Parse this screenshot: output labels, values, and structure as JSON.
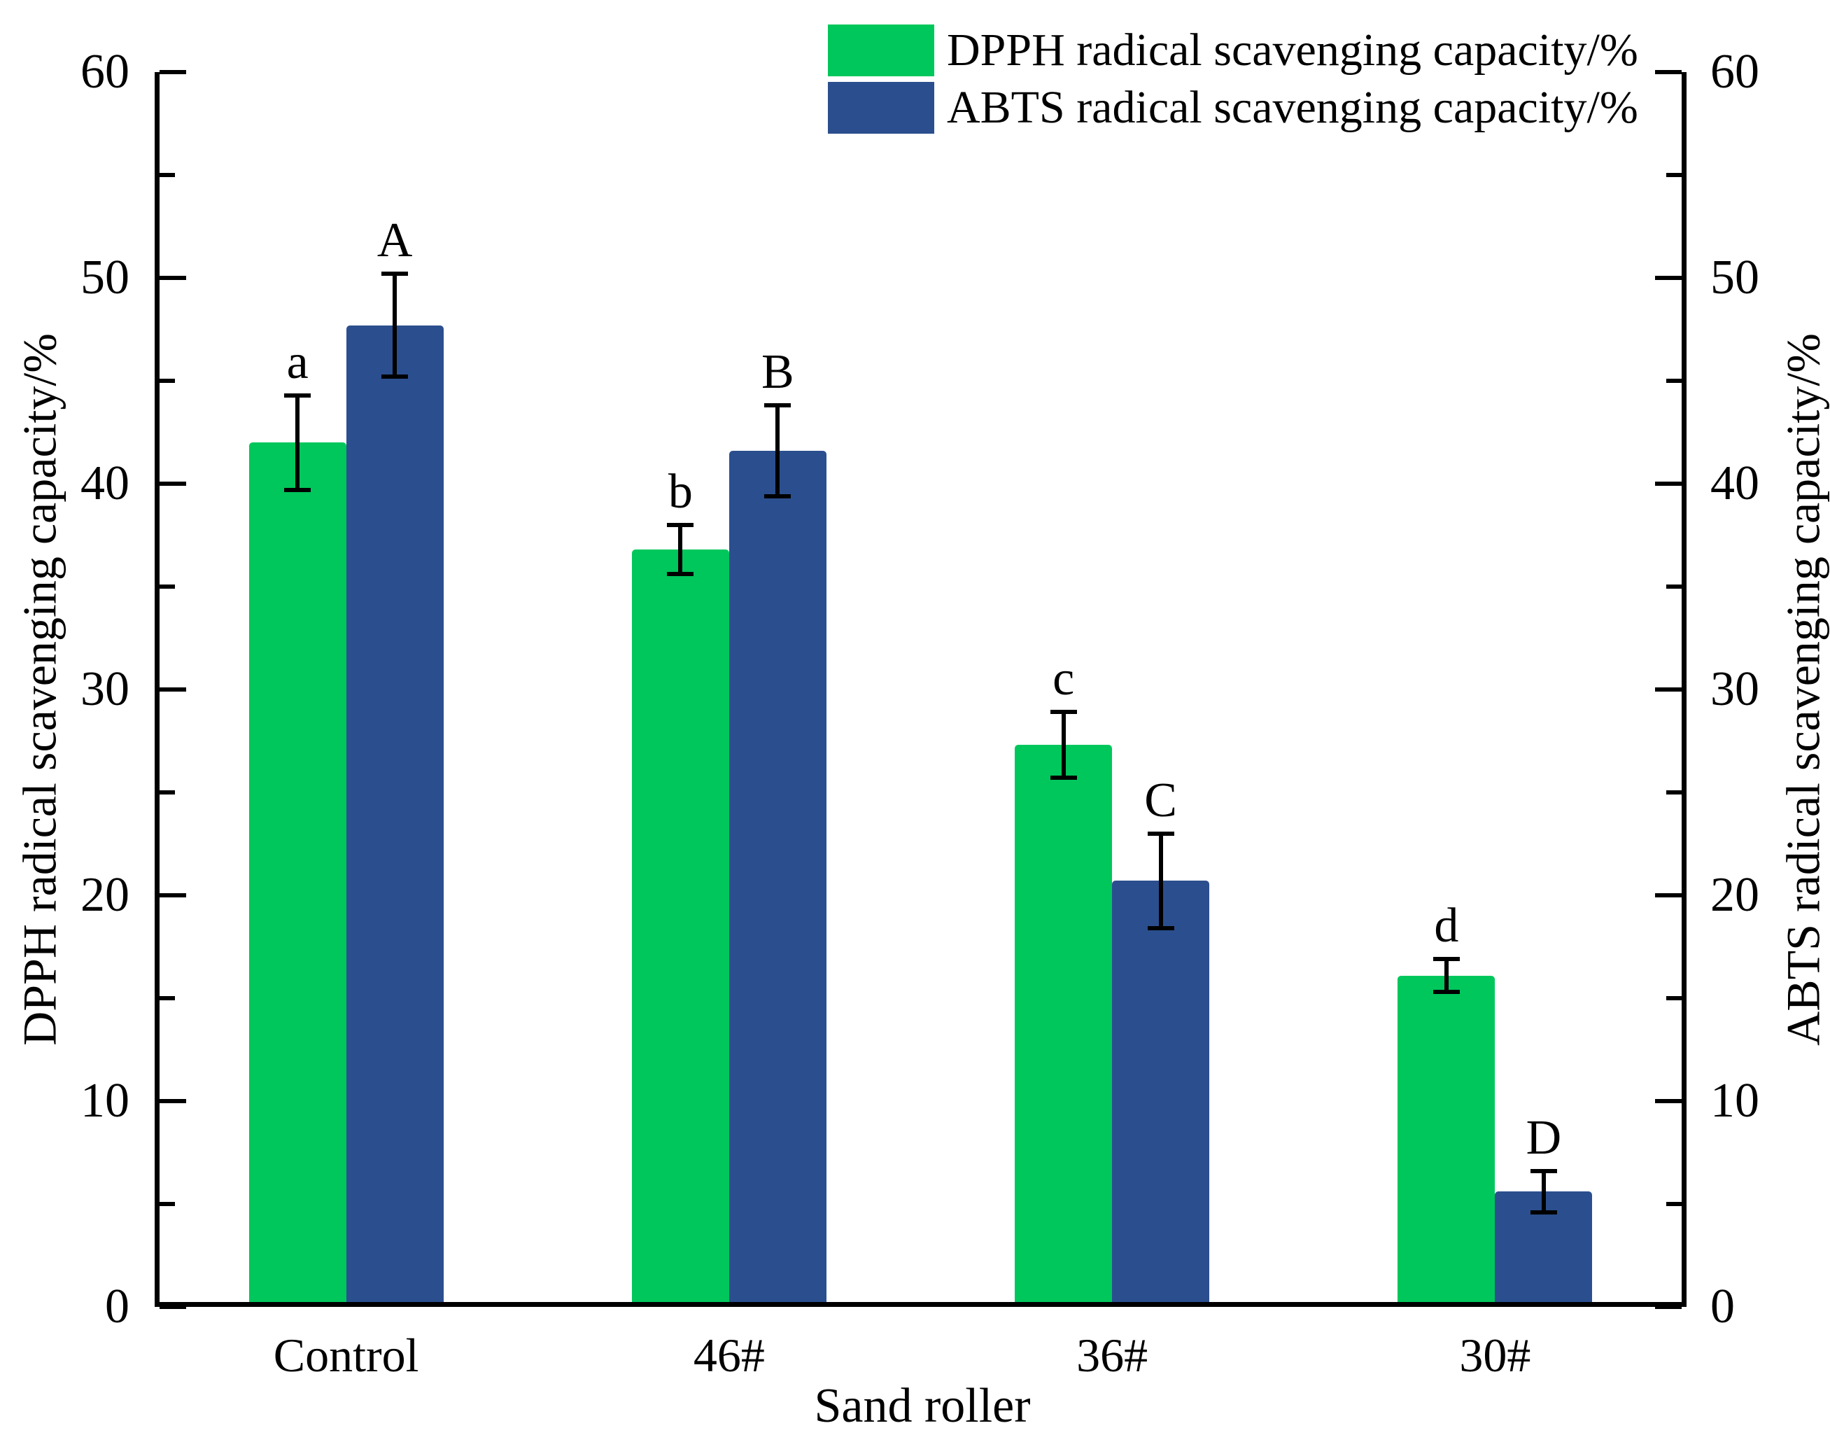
{
  "figure": {
    "background": "#ffffff",
    "text_color": "#000000"
  },
  "chart_data": {
    "type": "bar",
    "categories": [
      "Control",
      "46#",
      "36#",
      "30#"
    ],
    "series": [
      {
        "name": "DPPH radical scavenging capacity/%",
        "color": "#00C75C",
        "axis": "left",
        "values": [
          42.0,
          36.8,
          27.3,
          16.1
        ],
        "errors": [
          2.3,
          1.2,
          1.6,
          0.8
        ],
        "letters": [
          "a",
          "b",
          "c",
          "d"
        ]
      },
      {
        "name": "ABTS radical scavenging capacity/%",
        "color": "#2B4F8E",
        "axis": "right",
        "values": [
          47.7,
          41.6,
          20.7,
          5.6
        ],
        "errors": [
          2.5,
          2.2,
          2.3,
          1.0
        ],
        "letters": [
          "A",
          "B",
          "C",
          "D"
        ]
      }
    ],
    "xlabel": "Sand roller",
    "ylabel_left": "DPPH radical scavenging capacity/%",
    "ylabel_right": "ABTS radical scavenging capacity/%",
    "ylim": [
      0,
      60
    ],
    "yticks_major": [
      0,
      10,
      20,
      30,
      40,
      50,
      60
    ],
    "yticks_minor": [
      5,
      15,
      25,
      35,
      45,
      55
    ],
    "grid": false,
    "legend_position": "top-center",
    "error_bar_color": "#000000"
  }
}
